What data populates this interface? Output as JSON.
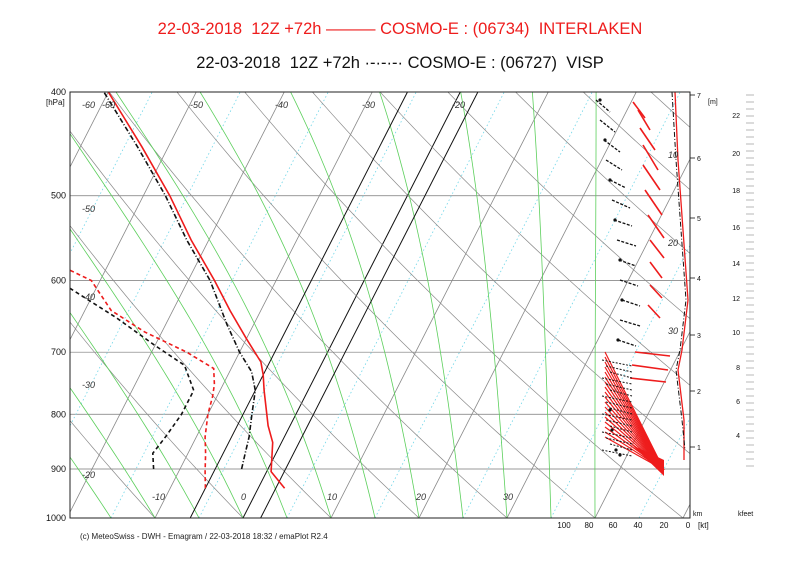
{
  "chart_data": {
    "type": "line",
    "chart_kind": "skew-T emagram",
    "titles": [
      {
        "date": "22-03-2018",
        "run": "12Z +72h",
        "model": "COSMO-E",
        "station_id": "(06734)",
        "station": "INTERLAKEN",
        "line_style": "solid",
        "color": "#ee1c1c"
      },
      {
        "date": "22-03-2018",
        "run": "12Z +72h",
        "model": "COSMO-E",
        "station_id": "(06727)",
        "station": "VISP",
        "line_style": "dash-dot",
        "color": "#111111"
      }
    ],
    "title_lines": [
      "22-03-2018  12Z +72h ——— COSMO-E : (06734)  INTERLAKEN",
      "22-03-2018  12Z +72h ·-·-·-· COSMO-E : (06727)  VISP"
    ],
    "y_axis": {
      "label": "[hPa]",
      "scale": "log",
      "range": [
        1000,
        400
      ],
      "ticks": [
        400,
        500,
        600,
        700,
        800,
        900,
        1000
      ]
    },
    "isotherm_labels": [
      -60,
      -50,
      -40,
      -30,
      -20,
      -10,
      0,
      10,
      20,
      30
    ],
    "isotherm_labels_x": [
      -10,
      0,
      10,
      20,
      30
    ],
    "height_km_axis": {
      "label": "km",
      "ticks": [
        1,
        2,
        3,
        4,
        5,
        6,
        7
      ]
    },
    "height_m_label": "[m]",
    "height_kfeet_axis": {
      "label": "kfeet",
      "ticks": [
        4,
        6,
        8,
        10,
        12,
        14,
        16,
        18,
        20,
        22
      ]
    },
    "wind_axis": {
      "label": "[kt]",
      "ticks": [
        100,
        80,
        60,
        40,
        20,
        0
      ]
    },
    "mixing_ratio_labels": [
      10,
      20,
      30
    ],
    "series": [
      {
        "name": "INTERLAKEN temperature",
        "style": "solid",
        "color": "#ee1c1c",
        "points": [
          [
            938,
            3
          ],
          [
            905,
            0.5
          ],
          [
            850,
            -1
          ],
          [
            820,
            -2.5
          ],
          [
            760,
            -5
          ],
          [
            735,
            -6
          ],
          [
            715,
            -7
          ],
          [
            680,
            -10
          ],
          [
            640,
            -13.5
          ],
          [
            600,
            -17
          ],
          [
            550,
            -22
          ],
          [
            500,
            -27
          ],
          [
            450,
            -33
          ],
          [
            400,
            -40
          ]
        ]
      },
      {
        "name": "INTERLAKEN dewpoint",
        "style": "dashed",
        "color": "#ee1c1c",
        "points": [
          [
            938,
            -6
          ],
          [
            905,
            -7
          ],
          [
            870,
            -8
          ],
          [
            840,
            -9
          ],
          [
            800,
            -10
          ],
          [
            770,
            -10.5
          ],
          [
            750,
            -11
          ],
          [
            725,
            -12
          ],
          [
            700,
            -16
          ],
          [
            670,
            -22
          ],
          [
            640,
            -27
          ],
          [
            600,
            -31
          ],
          [
            570,
            -38
          ],
          [
            550,
            -44
          ],
          [
            500,
            -49
          ],
          [
            460,
            -55
          ],
          [
            420,
            -60
          ],
          [
            400,
            -62
          ]
        ]
      },
      {
        "name": "VISP temperature",
        "style": "dash-dot",
        "color": "#111111",
        "points": [
          [
            900,
            -3
          ],
          [
            870,
            -3.5
          ],
          [
            840,
            -4
          ],
          [
            800,
            -5
          ],
          [
            760,
            -6
          ],
          [
            730,
            -7.5
          ],
          [
            700,
            -10
          ],
          [
            660,
            -13
          ],
          [
            600,
            -17.5
          ],
          [
            550,
            -22.5
          ],
          [
            500,
            -27.5
          ],
          [
            450,
            -33.5
          ],
          [
            400,
            -40.5
          ]
        ]
      },
      {
        "name": "VISP dewpoint",
        "style": "dashed",
        "color": "#111111",
        "points": [
          [
            900,
            -13
          ],
          [
            870,
            -14
          ],
          [
            840,
            -13.5
          ],
          [
            800,
            -13
          ],
          [
            760,
            -13
          ],
          [
            720,
            -15.5
          ],
          [
            690,
            -20
          ],
          [
            650,
            -26
          ],
          [
            610,
            -33
          ],
          [
            570,
            -40
          ],
          [
            550,
            -44
          ],
          [
            500,
            -47
          ],
          [
            460,
            -52
          ],
          [
            420,
            -56
          ],
          [
            400,
            -58
          ]
        ]
      }
    ]
  },
  "footer_text": "(c) MeteoSwiss - DWH - Emagram / 22-03-2018  18:32 / emaPlot R2.4"
}
